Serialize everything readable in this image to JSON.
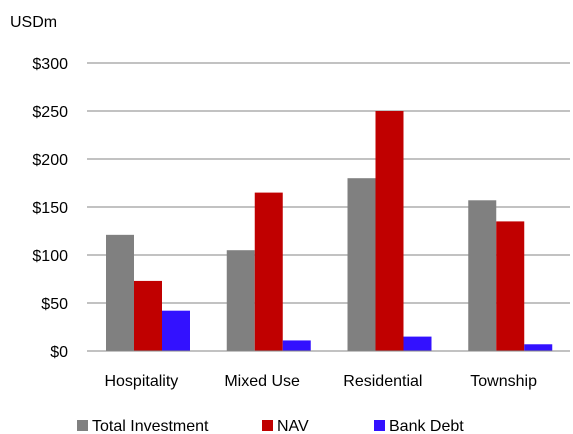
{
  "chart_data": {
    "type": "bar",
    "title": "",
    "xlabel": "",
    "ylabel": "",
    "unit_label": "USDm",
    "categories": [
      "Hospitality",
      "Mixed Use",
      "Residential",
      "Township"
    ],
    "series": [
      {
        "name": "Total Investment",
        "color": "#808080",
        "values": [
          121,
          105,
          180,
          157
        ]
      },
      {
        "name": "NAV",
        "color": "#C00000",
        "values": [
          73,
          165,
          250,
          135
        ]
      },
      {
        "name": "Bank Debt",
        "color": "#3311FF",
        "values": [
          42,
          11,
          15,
          7
        ]
      }
    ],
    "ylim": [
      0,
      300
    ],
    "y_ticks": [
      0,
      50,
      100,
      150,
      200,
      250,
      300
    ],
    "y_tick_labels": [
      "$0",
      "$50",
      "$100",
      "$150",
      "$200",
      "$250",
      "$300"
    ],
    "grid": true,
    "legend_position": "bottom"
  }
}
